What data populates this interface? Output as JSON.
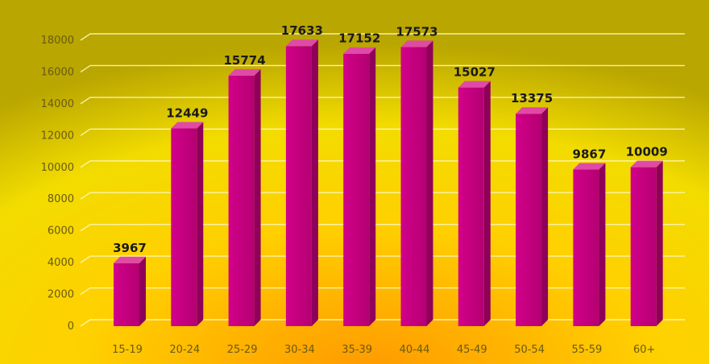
{
  "chart_data": {
    "type": "bar",
    "categories": [
      "15-19",
      "20-24",
      "25-29",
      "30-34",
      "35-39",
      "40-44",
      "45-49",
      "50-54",
      "55-59",
      "60+"
    ],
    "values": [
      3967,
      12449,
      15774,
      17633,
      17152,
      17573,
      15027,
      13375,
      9867,
      10009
    ],
    "yticks": [
      "0",
      "2000",
      "4000",
      "6000",
      "8000",
      "10000",
      "12000",
      "14000",
      "16000",
      "18000"
    ],
    "ylim": [
      0,
      18000
    ],
    "grid": true,
    "legend": "none",
    "data_labels": true,
    "colors": {
      "bar_front": "#c8007e",
      "bar_side": "#8e0059",
      "bar_top": "#e04aa6",
      "grid": "#fff7b8",
      "label_text": "#1a1a1a",
      "tick_text": "#6a5a10",
      "background_outer": "#c8b400",
      "background_inner": "#ffb000"
    }
  }
}
